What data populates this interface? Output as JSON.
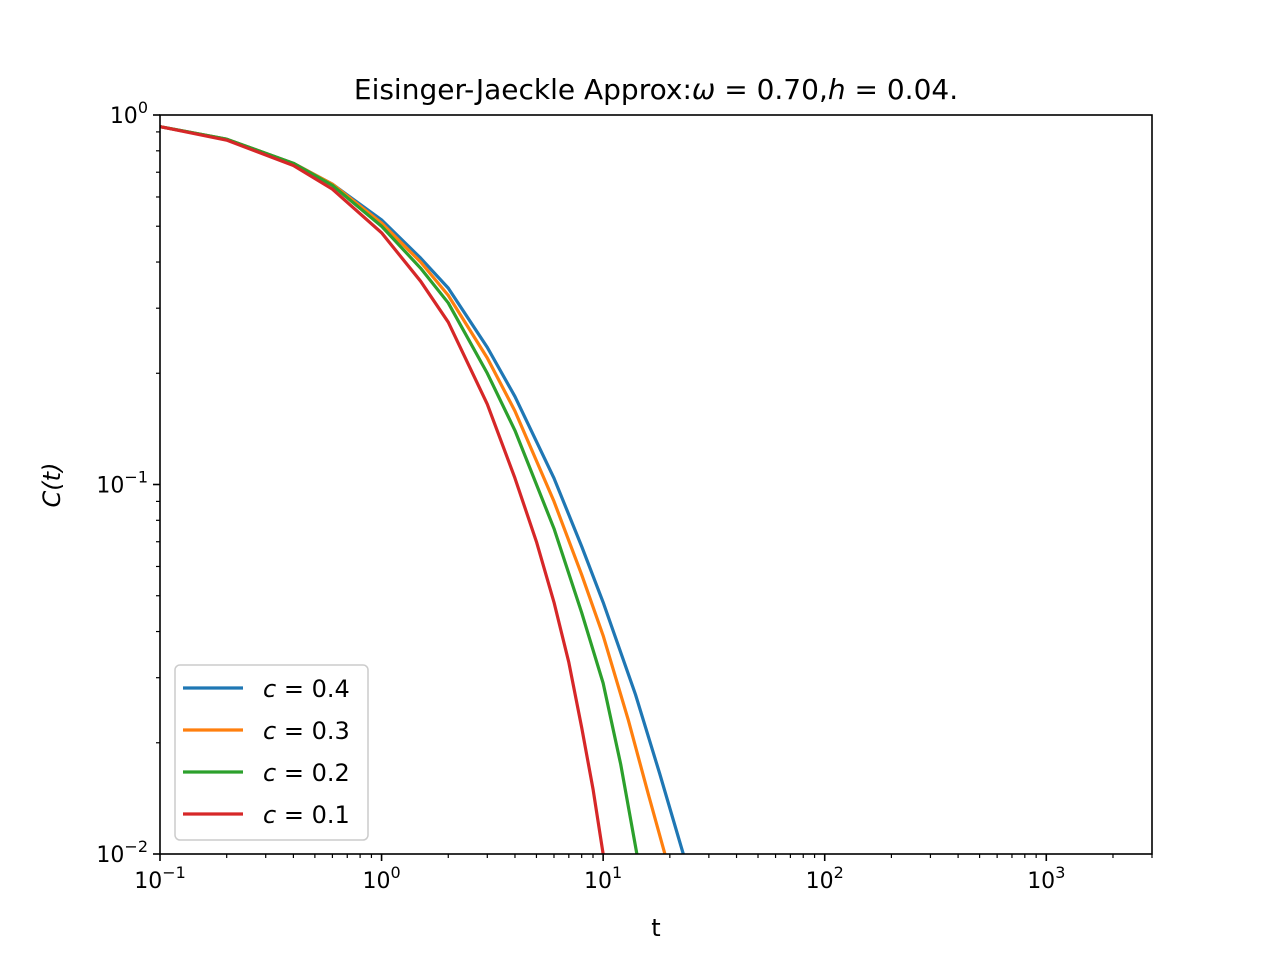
{
  "chart_data": {
    "type": "line",
    "title": {
      "prefix": "Eisinger-Jaeckle Approx:",
      "omega_symbol": "ω",
      "omega_value": "0.70",
      "h_symbol": "h",
      "h_value": "0.04",
      "suffix": "."
    },
    "xlabel": "t",
    "ylabel": "C(t)",
    "xscale": "log",
    "yscale": "log",
    "xlim": [
      0.1,
      3000
    ],
    "ylim": [
      0.01,
      1
    ],
    "x_ticks": [
      {
        "value": 0.1,
        "base": "10",
        "exp": "−1"
      },
      {
        "value": 1,
        "base": "10",
        "exp": "0"
      },
      {
        "value": 10,
        "base": "10",
        "exp": "1"
      },
      {
        "value": 100,
        "base": "10",
        "exp": "2"
      },
      {
        "value": 1000,
        "base": "10",
        "exp": "3"
      }
    ],
    "y_ticks": [
      {
        "value": 0.01,
        "base": "10",
        "exp": "−2"
      },
      {
        "value": 0.1,
        "base": "10",
        "exp": "−1"
      },
      {
        "value": 1,
        "base": "10",
        "exp": "0"
      }
    ],
    "grid": false,
    "legend_position": "lower-left",
    "series": [
      {
        "name": "c = 0.4",
        "var": "c",
        "val": "0.4",
        "color": "#1f77b4",
        "x": [
          0.1,
          0.2,
          0.4,
          0.6,
          1.0,
          1.5,
          2.0,
          3.0,
          4.0,
          6.0,
          8.0,
          10.0,
          14.0,
          18.0,
          23.0
        ],
        "y": [
          0.93,
          0.86,
          0.74,
          0.65,
          0.52,
          0.41,
          0.34,
          0.235,
          0.173,
          0.104,
          0.068,
          0.048,
          0.027,
          0.0165,
          0.01
        ]
      },
      {
        "name": "c = 0.3",
        "var": "c",
        "val": "0.3",
        "color": "#ff7f0e",
        "x": [
          0.1,
          0.2,
          0.4,
          0.6,
          1.0,
          1.5,
          2.0,
          3.0,
          4.0,
          6.0,
          8.0,
          10.0,
          13.0,
          16.0,
          19.0
        ],
        "y": [
          0.93,
          0.86,
          0.74,
          0.65,
          0.51,
          0.4,
          0.325,
          0.22,
          0.158,
          0.09,
          0.057,
          0.039,
          0.023,
          0.0145,
          0.01
        ]
      },
      {
        "name": "c = 0.2",
        "var": "c",
        "val": "0.2",
        "color": "#2ca02c",
        "x": [
          0.1,
          0.2,
          0.4,
          0.6,
          1.0,
          1.5,
          2.0,
          3.0,
          4.0,
          6.0,
          8.0,
          10.0,
          12.0,
          14.2
        ],
        "y": [
          0.93,
          0.86,
          0.74,
          0.645,
          0.5,
          0.385,
          0.31,
          0.2,
          0.14,
          0.076,
          0.045,
          0.029,
          0.0175,
          0.01
        ]
      },
      {
        "name": "c = 0.1",
        "var": "c",
        "val": "0.1",
        "color": "#d62728",
        "x": [
          0.1,
          0.2,
          0.4,
          0.6,
          1.0,
          1.5,
          2.0,
          3.0,
          4.0,
          5.0,
          6.0,
          7.0,
          8.0,
          9.0,
          10.0
        ],
        "y": [
          0.93,
          0.855,
          0.73,
          0.63,
          0.48,
          0.355,
          0.275,
          0.165,
          0.104,
          0.07,
          0.048,
          0.033,
          0.022,
          0.015,
          0.01
        ]
      }
    ]
  }
}
